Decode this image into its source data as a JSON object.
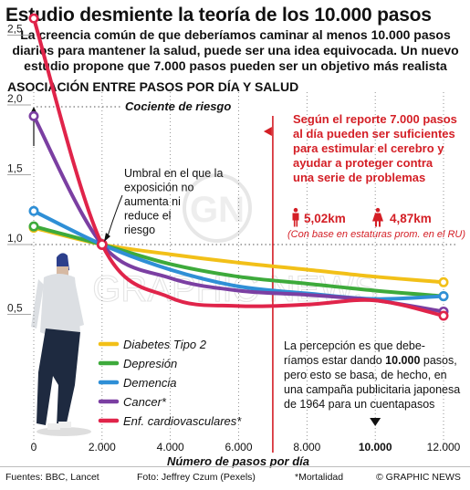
{
  "header": {
    "title": "Estudio desmiente la teoría de los 10.000 pasos",
    "subtitle": "La creencia común de que deberíamos caminar al menos 10.000 pasos diarios para mantener la salud, puede ser una idea equivocada. Un nuevo estudio propone que 7.000 pasos pueden ser un objetivo más realista",
    "section": "ASOCIACIÓN ENTRE PASOS POR DÍA Y SALUD"
  },
  "annotations": {
    "ratio_label": "Cociente de riesgo",
    "threshold_lines": [
      "Umbral en el que la",
      "exposición no",
      "aumenta ni",
      "reduce el",
      "riesgo"
    ],
    "report_lines": [
      "Según el reporte 7.000 pasos",
      "al día pueden ser suficientes",
      "para estimular el cerebro y",
      "ayudar a proteger contra",
      "una serie de problemas"
    ],
    "male_distance": "5,02km",
    "female_distance": "4,87km",
    "stature_note": "(Con base en estaturas prom. en el RU)",
    "perception_lines": [
      "La percepción es que debe-",
      "ríamos estar dando ",
      "10.000",
      " pasos,",
      "pero esto se basa, de hecho, en",
      "una campaña publicitaria japonesa",
      "de 1964 para un cuentapasos"
    ],
    "watermark": "GRAPHIC NEWS",
    "watermark_logo": "GN"
  },
  "footer": {
    "sources": "Fuentes: BBC, Lancet",
    "photo": "Foto: Jeffrey Czum (Pexels)",
    "note": "*Mortalidad",
    "credit": "© GRAPHIC NEWS"
  },
  "colors": {
    "diabetes": "#f2c018",
    "depresion": "#3daa3b",
    "demencia": "#2f8fd6",
    "cancer": "#7b3fa2",
    "cardio": "#e0244a",
    "accent_red": "#d41f26"
  },
  "chart_data": {
    "type": "line",
    "title": "ASOCIACIÓN ENTRE PASOS POR DÍA Y SALUD",
    "xlabel": "Número de pasos por día",
    "ylabel": "Cociente de riesgo",
    "xlim": [
      0,
      12000
    ],
    "ylim": [
      0,
      2.7
    ],
    "x_ticks": [
      0,
      2000,
      4000,
      6000,
      8000,
      10000,
      12000
    ],
    "x_tick_labels": [
      "0",
      "2.000",
      "4.000",
      "6.000",
      "8.000",
      "10.000",
      "12.000"
    ],
    "y_ticks": [
      0.5,
      1.0,
      1.5,
      2.0,
      2.5
    ],
    "y_tick_labels": [
      "0,5",
      "1,0",
      "1,5",
      "2,0",
      "2,5"
    ],
    "reference_lines": [
      {
        "axis": "y",
        "value": 1.0,
        "style": "dotted"
      },
      {
        "axis": "x",
        "value": 7000,
        "color": "#d41f26"
      }
    ],
    "legend_position": "bottom-left",
    "series": [
      {
        "name": "Diabetes Tipo 2",
        "key": "diabetes",
        "x": [
          0,
          2000,
          4000,
          6000,
          8000,
          10000,
          12000
        ],
        "y": [
          1.12,
          1.0,
          0.93,
          0.87,
          0.82,
          0.77,
          0.73
        ]
      },
      {
        "name": "Depresión",
        "key": "depresion",
        "x": [
          0,
          2000,
          4000,
          6000,
          8000,
          10000,
          12000
        ],
        "y": [
          1.13,
          1.0,
          0.86,
          0.77,
          0.72,
          0.67,
          0.63
        ]
      },
      {
        "name": "Demencia",
        "key": "demencia",
        "x": [
          0,
          2000,
          4000,
          6000,
          8000,
          10000,
          12000
        ],
        "y": [
          1.24,
          1.0,
          0.82,
          0.7,
          0.65,
          0.61,
          0.63
        ]
      },
      {
        "name": "Cancer*",
        "key": "cancer",
        "x": [
          0,
          2000,
          4000,
          6000,
          8000,
          10000,
          12000
        ],
        "y": [
          1.92,
          1.0,
          0.76,
          0.67,
          0.64,
          0.6,
          0.52
        ]
      },
      {
        "name": "Enf. cardiovasculares*",
        "key": "cardio",
        "x": [
          0,
          2000,
          4000,
          6000,
          8000,
          10000,
          12000
        ],
        "y": [
          2.62,
          1.0,
          0.62,
          0.56,
          0.57,
          0.6,
          0.49
        ]
      }
    ],
    "highlight_marker": {
      "x": 10000,
      "label": "10.000"
    },
    "threshold_point": {
      "x": 2000,
      "y": 1.0
    }
  }
}
